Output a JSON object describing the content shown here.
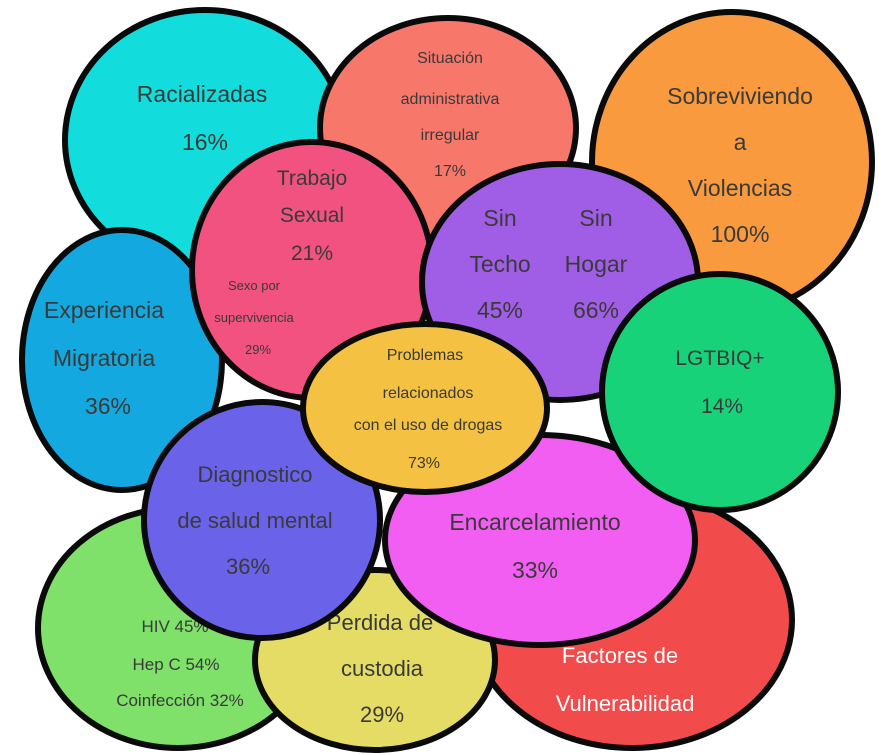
{
  "diagram": {
    "bubbles": {
      "vulnerability": {
        "lines": [
          "Factores de",
          "Vulnerabilidad"
        ],
        "color": "#f24b4b"
      },
      "racialized": {
        "lines": [
          "Racializadas",
          "16%"
        ],
        "color": "#12dcdc"
      },
      "admin": {
        "lines": [
          "Situación",
          "administrativa",
          "irregular",
          "17%"
        ],
        "color": "#f7776b"
      },
      "violence": {
        "lines": [
          "Sobreviviendo",
          "a",
          "Violencias",
          "100%"
        ],
        "color": "#f99a3e"
      },
      "migration": {
        "lines": [
          "Experiencia",
          "Migratoria",
          "36%"
        ],
        "color": "#14a8e0"
      },
      "hiv": {
        "lines": [
          "HIV 45%",
          "Hep C 54%",
          "Coinfección 32%"
        ],
        "color": "#7fe06a"
      },
      "custody": {
        "lines": [
          "Perdida de",
          "custodia",
          "29%"
        ],
        "color": "#e5dc66"
      },
      "prison": {
        "lines": [
          "Encarcelamiento",
          "33%"
        ],
        "color": "#f25ef2"
      },
      "mental": {
        "lines": [
          "Diagnostico",
          "de salud mental",
          "36%"
        ],
        "color": "#6a62e8"
      },
      "sexwork": {
        "lines": [
          "Trabajo",
          "Sexual",
          "21%"
        ],
        "sublines": [
          "Sexo por",
          "supervivencia",
          "29%"
        ],
        "color": "#f2527f"
      },
      "homeless": {
        "left": [
          "Sin",
          "Techo",
          "45%"
        ],
        "right": [
          "Sin",
          "Hogar",
          "66%"
        ],
        "color": "#a05ee6"
      },
      "lgtbiq": {
        "lines": [
          "LGTBIQ+",
          "14%"
        ],
        "color": "#18d27a"
      },
      "drugs": {
        "lines": [
          "Problemas",
          "relacionados",
          "con el uso de drogas",
          "73%"
        ],
        "color": "#f4c142"
      }
    }
  }
}
